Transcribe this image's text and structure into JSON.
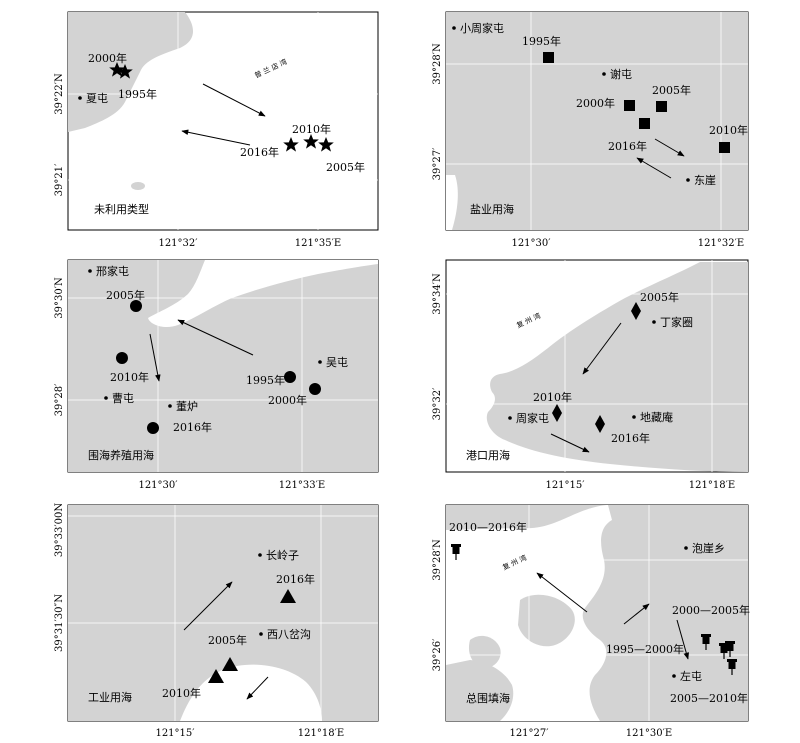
{
  "panels": [
    {
      "title": "未利用类型",
      "lat_labels": [
        "39°22′N",
        "39°21′"
      ],
      "lon_labels": [
        "121°32′",
        "121°35′E"
      ],
      "places": [
        "夏屯"
      ],
      "years": [
        "2000年",
        "1995年",
        "2010年",
        "2016年",
        "2005年"
      ],
      "sea_label": "普 兰 店 湾",
      "marker": "star"
    },
    {
      "title": "盐业用海",
      "lat_labels": [
        "39°28′N",
        "39°27′"
      ],
      "lon_labels": [
        "121°30′",
        "121°32′E"
      ],
      "places": [
        "小周家屯",
        "谢屯",
        "东崖"
      ],
      "years": [
        "1995年",
        "2000年",
        "2005年",
        "2016年",
        "2010年"
      ],
      "marker": "square"
    },
    {
      "title": "围海养殖用海",
      "lat_labels": [
        "39°30′N",
        "39°28′"
      ],
      "lon_labels": [
        "121°30′",
        "121°33′E"
      ],
      "places": [
        "邢家屯",
        "吴屯",
        "董炉",
        "曹屯"
      ],
      "years": [
        "2005年",
        "2010年",
        "1995年",
        "2000年",
        "2016年"
      ],
      "marker": "circle"
    },
    {
      "title": "港口用海",
      "lat_labels": [
        "39°34′N",
        "39°32′"
      ],
      "lon_labels": [
        "121°15′",
        "121°18′E"
      ],
      "places": [
        "丁家圈",
        "周家屯",
        "地藏庵"
      ],
      "years": [
        "2005年",
        "2010年",
        "2016年"
      ],
      "sea_label": "复 州 湾",
      "marker": "diamond"
    },
    {
      "title": "工业用海",
      "lat_labels": [
        "39°33′00N",
        "39°31′30″N"
      ],
      "lon_labels": [
        "121°15′",
        "121°18′E"
      ],
      "places": [
        "长岭子",
        "西八岔沟"
      ],
      "years": [
        "2016年",
        "2005年",
        "2010年"
      ],
      "marker": "triangle"
    },
    {
      "title": "总围填海",
      "lat_labels": [
        "39°28′N",
        "39°26′"
      ],
      "lon_labels": [
        "121°27′",
        "121°30′E"
      ],
      "places": [
        "泡崖乡",
        "左屯"
      ],
      "years": [
        "2010—2016年",
        "2000—2005年",
        "1995—2000年",
        "2005—2010年"
      ],
      "sea_label": "复 州 湾",
      "marker": "pushpin"
    }
  ],
  "colors": {
    "land": "#d3d3d3",
    "sea": "#ffffff",
    "marker": "#000000"
  }
}
